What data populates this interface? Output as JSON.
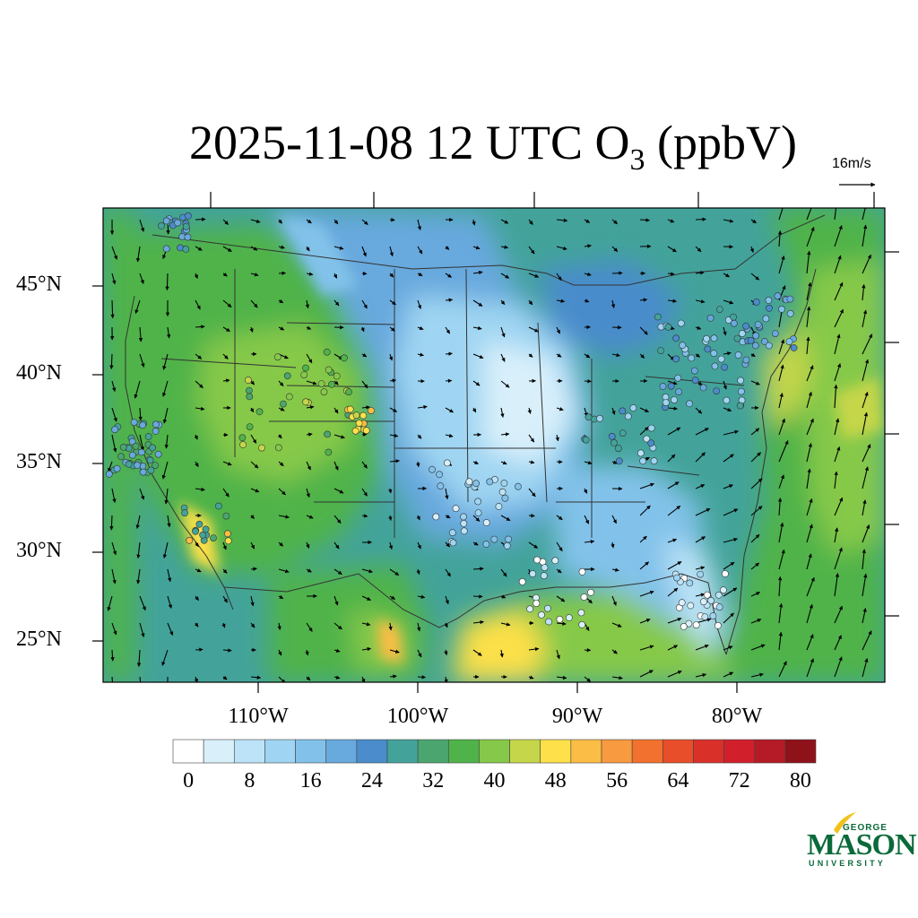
{
  "title": {
    "prefix": "2025-11-08 12 UTC O",
    "subscript": "3",
    "suffix": " (ppbV)"
  },
  "vector_reference": {
    "label": "16m/s",
    "speed_ms": 16
  },
  "map": {
    "lat_range": [
      22.5,
      49.5
    ],
    "lon_range": [
      -121,
      -72
    ],
    "lat_ticks": [
      {
        "value": 45,
        "label": "45°N"
      },
      {
        "value": 40,
        "label": "40°N"
      },
      {
        "value": 35,
        "label": "35°N"
      },
      {
        "value": 30,
        "label": "30°N"
      },
      {
        "value": 25,
        "label": "25°N"
      }
    ],
    "lon_ticks": [
      {
        "value": -110,
        "label": "110°W"
      },
      {
        "value": -100,
        "label": "100°W"
      },
      {
        "value": -90,
        "label": "90°W"
      },
      {
        "value": -80,
        "label": "80°W"
      }
    ]
  },
  "colorbar": {
    "colors": [
      "#ffffff",
      "#d9f0fb",
      "#bce3f7",
      "#9fd5f2",
      "#82c2ea",
      "#68a9de",
      "#4a8ccc",
      "#43a39a",
      "#4aa66e",
      "#4fb34a",
      "#86c94a",
      "#c5d64a",
      "#fde04a",
      "#fbbd45",
      "#f89a40",
      "#f2712f",
      "#e84e2a",
      "#d9302a",
      "#d11f2b",
      "#b51b26",
      "#8e1219"
    ],
    "labels": [
      {
        "value": 0,
        "label": "0"
      },
      {
        "value": 8,
        "label": "8"
      },
      {
        "value": 16,
        "label": "16"
      },
      {
        "value": 24,
        "label": "24"
      },
      {
        "value": 32,
        "label": "32"
      },
      {
        "value": 40,
        "label": "40"
      },
      {
        "value": 48,
        "label": "48"
      },
      {
        "value": 56,
        "label": "56"
      },
      {
        "value": 64,
        "label": "64"
      },
      {
        "value": 72,
        "label": "72"
      },
      {
        "value": 80,
        "label": "80"
      }
    ]
  },
  "logo": {
    "line1": "GEORGE",
    "line2": "MASON",
    "line3": "UNIVERSITY",
    "brand_color": "#0b6a3a",
    "accent_color": "#f2c21b"
  }
}
